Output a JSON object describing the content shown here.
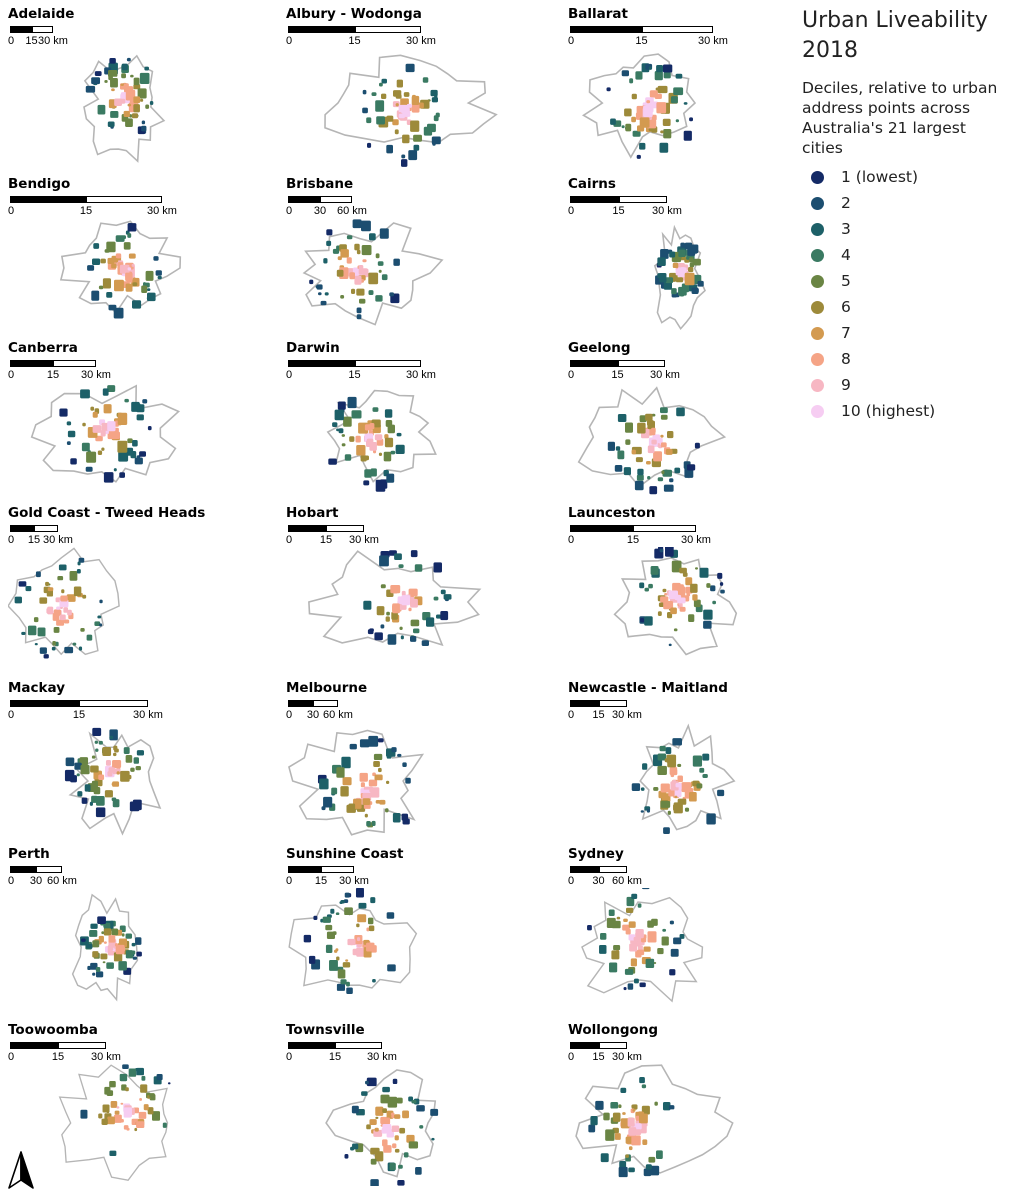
{
  "legend": {
    "title_line1": "Urban Liveability",
    "title_line2": "2018",
    "subtitle_line1": "Deciles, relative to urban",
    "subtitle_line2": "address points across",
    "subtitle_line3": "Australia's 21 largest cities",
    "items": [
      {
        "label": "1 (lowest)",
        "color": "#142a66"
      },
      {
        "label": "2",
        "color": "#1c4e70"
      },
      {
        "label": "3",
        "color": "#1d6068"
      },
      {
        "label": "4",
        "color": "#3a7a62"
      },
      {
        "label": "5",
        "color": "#6a8544"
      },
      {
        "label": "6",
        "color": "#9d8a3a"
      },
      {
        "label": "7",
        "color": "#d39a50"
      },
      {
        "label": "8",
        "color": "#f5a486"
      },
      {
        "label": "9",
        "color": "#f7b7c3"
      },
      {
        "label": "10 (highest)",
        "color": "#f6cdf2"
      }
    ]
  },
  "cities": [
    {
      "name": "Adelaide",
      "scale": [
        "0",
        "15",
        "30 km"
      ]
    },
    {
      "name": "Albury - Wodonga",
      "scale": [
        "0",
        "15",
        "30 km"
      ]
    },
    {
      "name": "Ballarat",
      "scale": [
        "0",
        "15",
        "30 km"
      ]
    },
    {
      "name": "Bendigo",
      "scale": [
        "0",
        "15",
        "30 km"
      ]
    },
    {
      "name": "Brisbane",
      "scale": [
        "0",
        "30",
        "60 km"
      ]
    },
    {
      "name": "Cairns",
      "scale": [
        "0",
        "15",
        "30 km"
      ]
    },
    {
      "name": "Canberra",
      "scale": [
        "0",
        "15",
        "30 km"
      ]
    },
    {
      "name": "Darwin",
      "scale": [
        "0",
        "15",
        "30 km"
      ]
    },
    {
      "name": "Geelong",
      "scale": [
        "0",
        "15",
        "30 km"
      ]
    },
    {
      "name": "Gold Coast - Tweed Heads",
      "scale": [
        "0",
        "15",
        "30 km"
      ]
    },
    {
      "name": "Hobart",
      "scale": [
        "0",
        "15",
        "30 km"
      ]
    },
    {
      "name": "Launceston",
      "scale": [
        "0",
        "15",
        "30 km"
      ]
    },
    {
      "name": "Mackay",
      "scale": [
        "0",
        "15",
        "30 km"
      ]
    },
    {
      "name": "Melbourne",
      "scale": [
        "0",
        "30",
        "60 km"
      ]
    },
    {
      "name": "Newcastle - Maitland",
      "scale": [
        "0",
        "15",
        "30 km"
      ]
    },
    {
      "name": "Perth",
      "scale": [
        "0",
        "30",
        "60 km"
      ]
    },
    {
      "name": "Sunshine Coast",
      "scale": [
        "0",
        "15",
        "30 km"
      ]
    },
    {
      "name": "Sydney",
      "scale": [
        "0",
        "30",
        "60 km"
      ]
    },
    {
      "name": "Toowoomba",
      "scale": [
        "0",
        "15",
        "30 km"
      ]
    },
    {
      "name": "Townsville",
      "scale": [
        "0",
        "15",
        "30 km"
      ]
    },
    {
      "name": "Wollongong",
      "scale": [
        "0",
        "15",
        "30 km"
      ]
    }
  ],
  "north_arrow_icon": "north-arrow-icon"
}
